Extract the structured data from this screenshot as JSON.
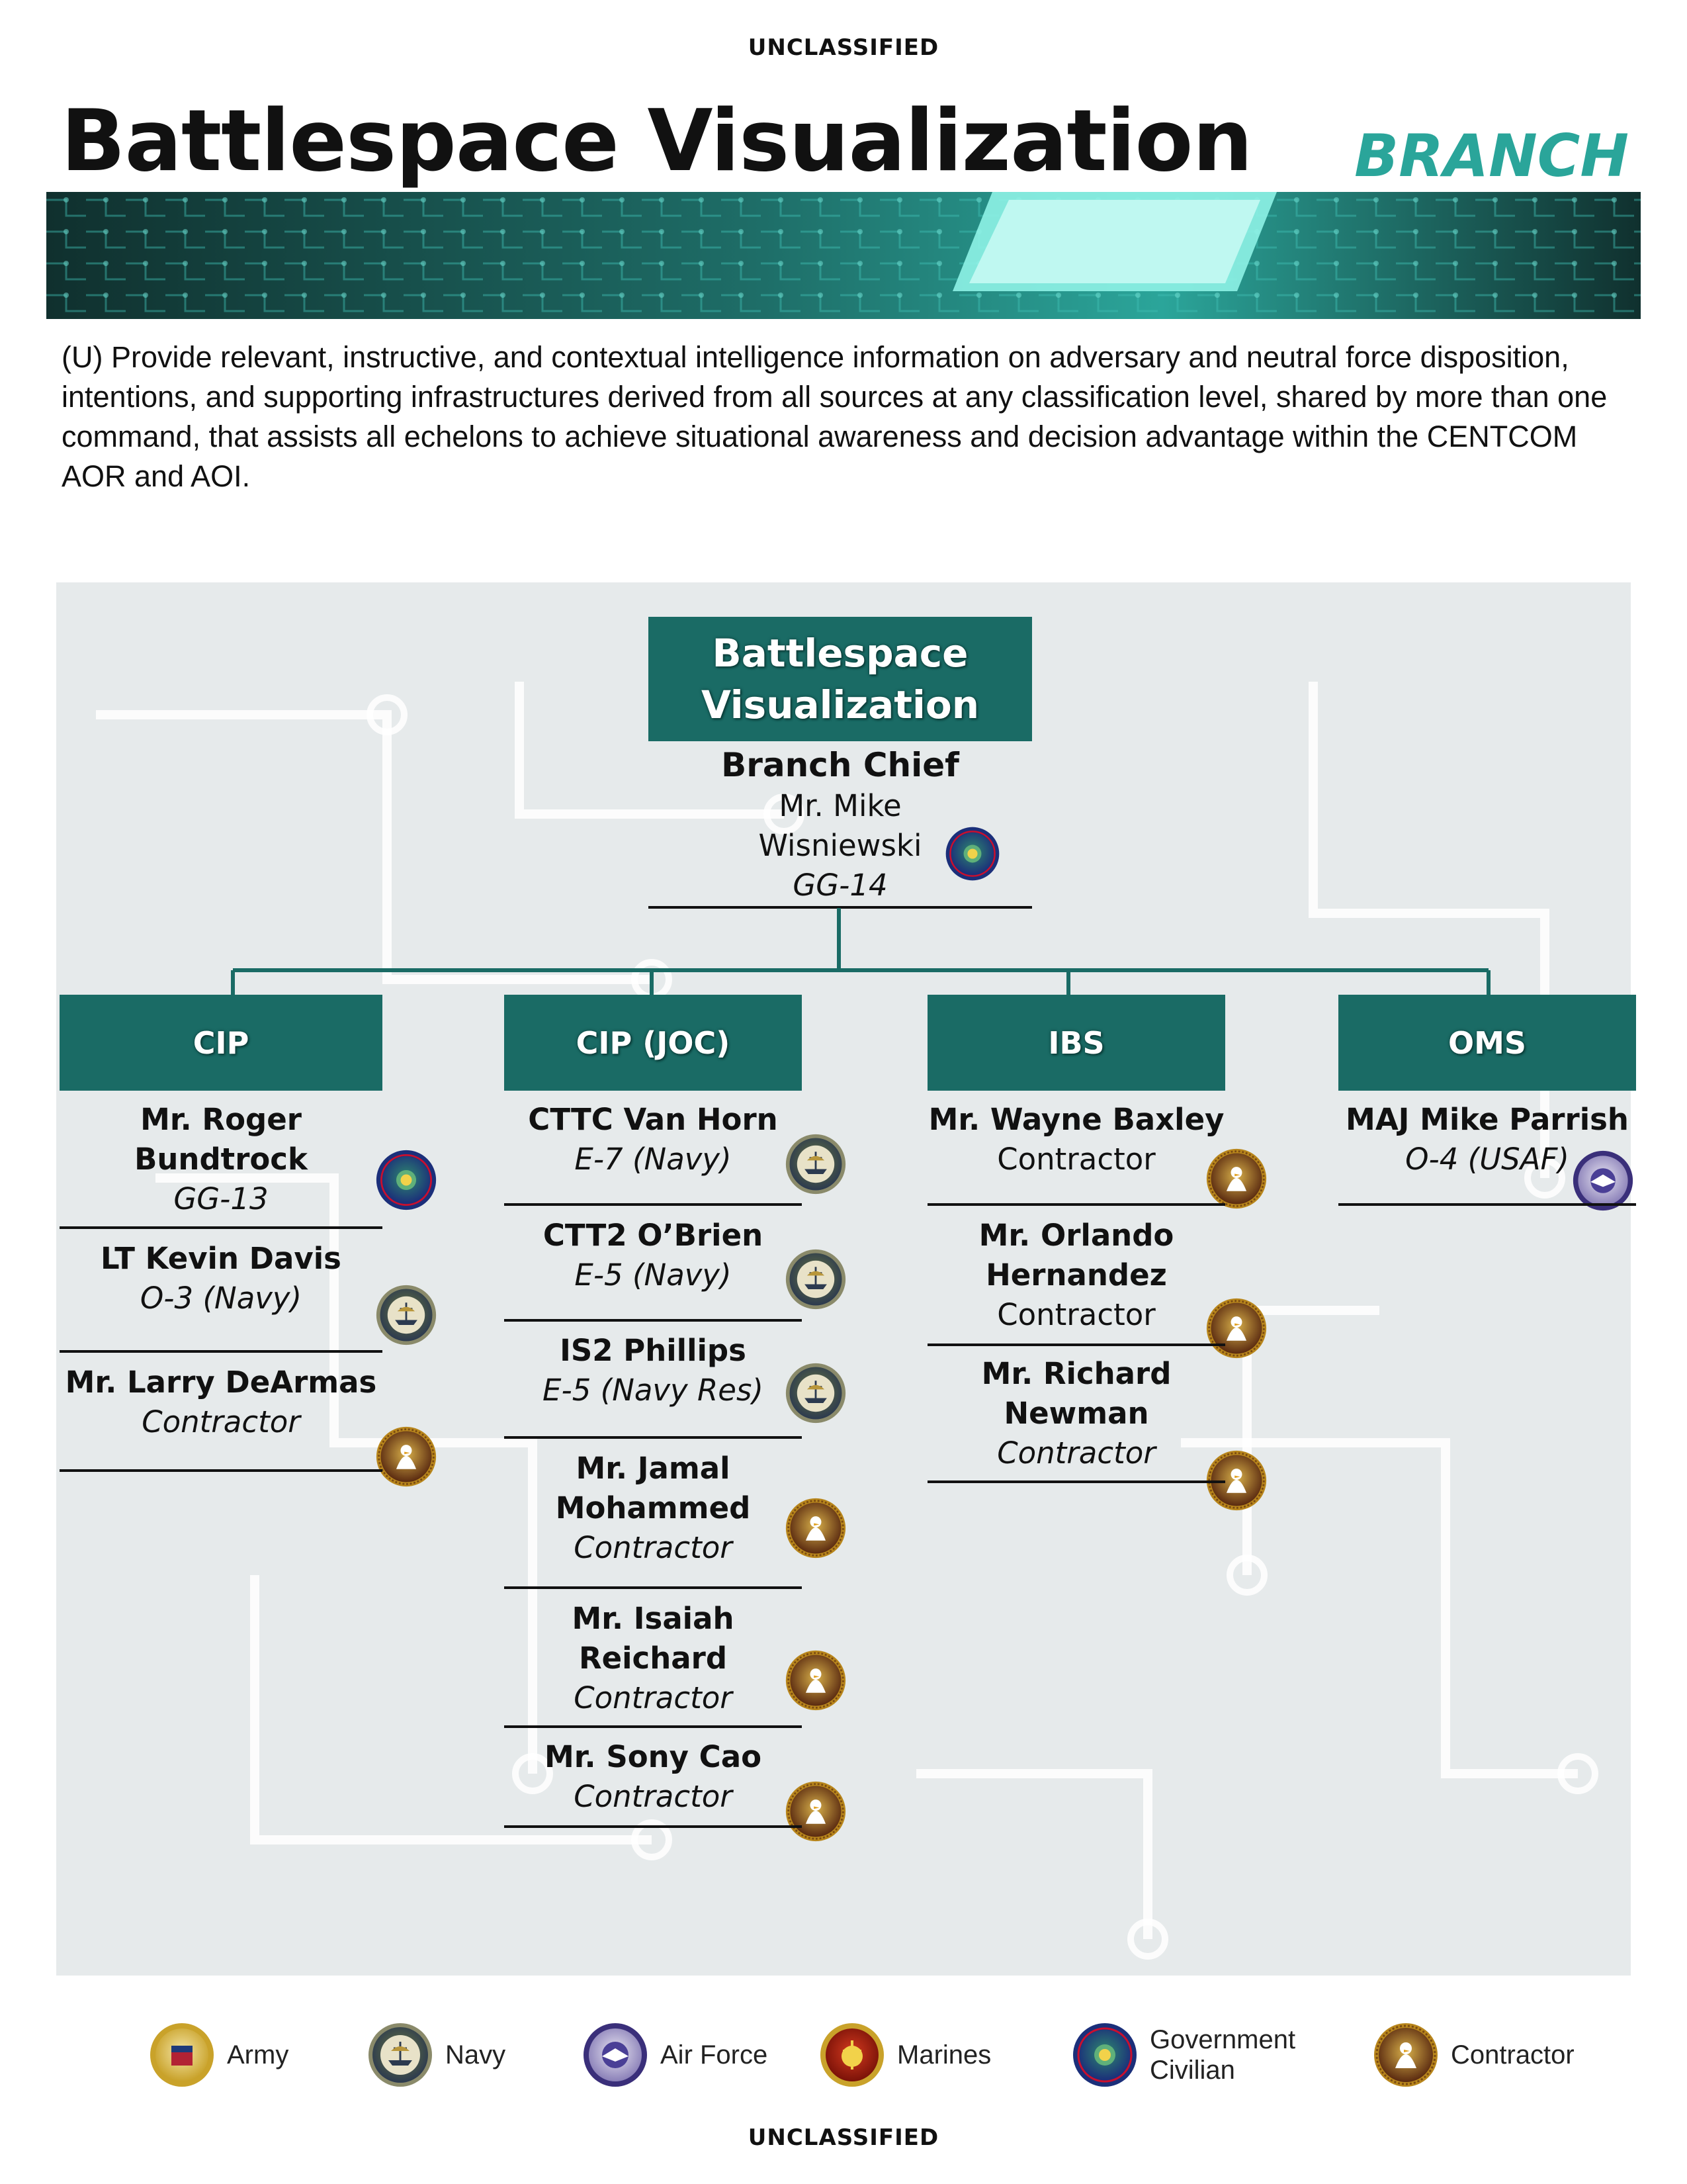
{
  "classification": "UNCLASSIFIED",
  "header": {
    "title": "Battlespace Visualization",
    "tag": "BRANCH"
  },
  "description": "(U) Provide relevant, instructive, and contextual intelligence information on adversary and neutral force disposition, intentions, and supporting infrastructures derived from all sources at any classification level, shared by more than one command, that assists all echelons to achieve situational awareness and decision advantage within the CENTCOM AOR and AOI.",
  "colors": {
    "teal": "#1a6b65",
    "accent": "#2aa59a",
    "text": "#111111"
  },
  "org": {
    "top_box": {
      "line1": "Battlespace",
      "line2": "Visualization"
    },
    "chief": {
      "title": "Branch Chief",
      "name_line1": "Mr. Mike",
      "name_line2": "Wisniewski",
      "grade": "GG-14",
      "seal": "government-civilian"
    },
    "columns": [
      {
        "header": "CIP",
        "members": [
          {
            "name": [
              "Mr. Roger",
              "Bundtrock"
            ],
            "grade": "GG-13",
            "seal": "government-civilian"
          },
          {
            "name": [
              "LT Kevin Davis"
            ],
            "grade": "O-3 (Navy)",
            "seal": "navy"
          },
          {
            "name": [
              "Mr. Larry DeArmas"
            ],
            "grade": "Contractor",
            "seal": "contractor"
          }
        ]
      },
      {
        "header": "CIP (JOC)",
        "members": [
          {
            "name": [
              "CTTC Van Horn"
            ],
            "grade": "E-7 (Navy)",
            "seal": "navy"
          },
          {
            "name": [
              "CTT2 O’Brien"
            ],
            "grade": "E-5 (Navy)",
            "seal": "navy"
          },
          {
            "name": [
              "IS2 Phillips"
            ],
            "grade": "E-5 (Navy Res)",
            "seal": "navy"
          },
          {
            "name": [
              "Mr. Jamal",
              "Mohammed"
            ],
            "grade": "Contractor",
            "seal": "contractor"
          },
          {
            "name": [
              "Mr. Isaiah",
              "Reichard"
            ],
            "grade": "Contractor",
            "seal": "contractor"
          },
          {
            "name": [
              "Mr. Sony Cao"
            ],
            "grade": "Contractor",
            "seal": "contractor"
          }
        ]
      },
      {
        "header": "IBS",
        "members": [
          {
            "name": [
              "Mr. Wayne Baxley"
            ],
            "grade": "Contractor",
            "seal": "contractor"
          },
          {
            "name": [
              "Mr. Orlando",
              "Hernandez"
            ],
            "grade": "Contractor",
            "seal": "contractor"
          },
          {
            "name": [
              "Mr. Richard",
              "Newman"
            ],
            "grade": "Contractor",
            "seal": "contractor"
          }
        ]
      },
      {
        "header": "OMS",
        "members": [
          {
            "name": [
              "MAJ Mike Parrish"
            ],
            "grade": "O-4 (USAF)",
            "seal": "air-force"
          }
        ]
      }
    ]
  },
  "legend": [
    {
      "label": "Army",
      "seal": "army"
    },
    {
      "label": "Navy",
      "seal": "navy"
    },
    {
      "label": "Air Force",
      "seal": "air-force"
    },
    {
      "label": "Marines",
      "seal": "marines"
    },
    {
      "label": "Government Civilian",
      "label_line1": "Government",
      "label_line2": "Civilian",
      "seal": "government-civilian"
    },
    {
      "label": "Contractor",
      "seal": "contractor"
    }
  ]
}
